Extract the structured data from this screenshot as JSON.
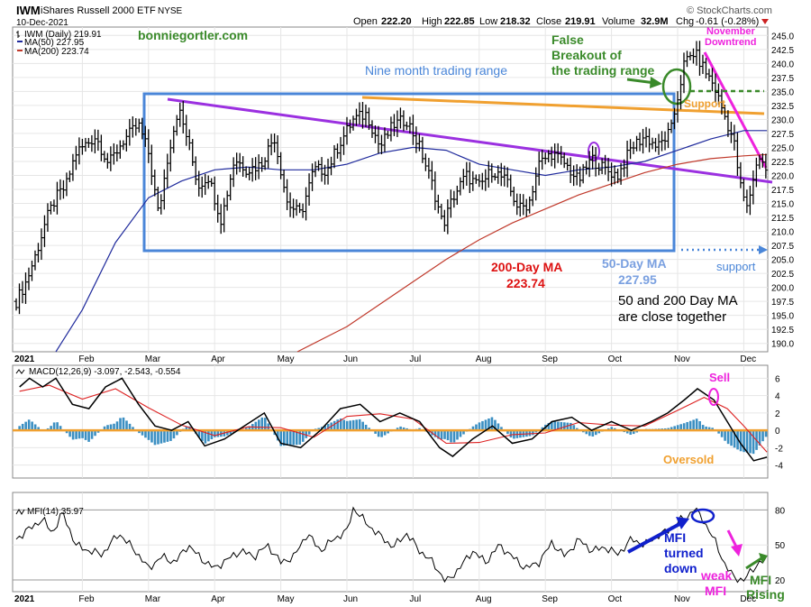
{
  "header": {
    "symbol": "IWM",
    "name": "iShares Russell 2000 ETF",
    "exchange": "NYSE",
    "date": "10-Dec-2021",
    "open_label": "Open",
    "open": "222.20",
    "high_label": "High",
    "high": "222.85",
    "low_label": "Low",
    "low": "218.32",
    "close_label": "Close",
    "close": "219.91",
    "volume_label": "Volume",
    "volume": "32.9M",
    "chg_label": "Chg",
    "chg": "-0.61 (-0.28%)",
    "copyright": "© StockCharts.com"
  },
  "legend": {
    "price": "IWM (Daily) 219.91",
    "ma50": "MA(50) 227.95",
    "ma200": "MA(200) 223.74",
    "macd": "MACD(12,26,9) -3.097, -2.543, -0.554",
    "mfi": "MFI(14) 35.97"
  },
  "annotations": {
    "author": "bonniegortler.com",
    "nine_month": "Nine month trading range",
    "false_breakout": [
      "False",
      "Breakout of",
      "the trading range"
    ],
    "november": [
      "November",
      "Downtrend"
    ],
    "support_top": "Support",
    "support_bottom": "support",
    "ma200_label": [
      "200-Day MA",
      "223.74"
    ],
    "ma50_label": [
      "50-Day MA",
      "227.95"
    ],
    "close_together": [
      "50 and 200 Day MA",
      "are close together"
    ],
    "sell": "Sell",
    "oversold": "Oversold",
    "mfi_turned": [
      "MFI",
      "turned",
      "down"
    ],
    "weak_mfi": [
      "weak",
      "MFI"
    ],
    "mfi_rising": [
      "MFI",
      "Rising"
    ]
  },
  "colors": {
    "price_bar": "#000000",
    "ma50": "#1f2a9c",
    "ma200": "#c0392b",
    "trading_box": "#4a86d8",
    "trend_purple": "#9b30e0",
    "trend_orange": "#f0a030",
    "trend_magenta": "#ee22dd",
    "green": "#3a8a2a",
    "blue_text": "#4a86d8",
    "red_text": "#dd1111",
    "hist": "#3b8fc2",
    "macd_signal": "#dd2222",
    "zero_line": "#f0a030"
  },
  "chart_data": [
    {
      "type": "ohlc",
      "title": "IWM iShares Russell 2000 ETF NYSE",
      "x_months": [
        "2021",
        "Feb",
        "Mar",
        "Apr",
        "May",
        "Jun",
        "Jul",
        "Aug",
        "Sep",
        "Oct",
        "Nov",
        "Dec"
      ],
      "yticks": [
        190,
        192.5,
        195,
        197.5,
        200,
        202.5,
        205,
        207.5,
        210,
        212.5,
        215,
        217.5,
        220,
        222.5,
        225,
        227.5,
        230,
        232.5,
        235,
        237.5,
        240,
        242.5,
        245
      ],
      "ylim": [
        188.5,
        246.5
      ],
      "close_path": [
        {
          "m": 0.0,
          "v": 197.5
        },
        {
          "m": 0.15,
          "v": 201
        },
        {
          "m": 0.3,
          "v": 206
        },
        {
          "m": 0.45,
          "v": 212
        },
        {
          "m": 0.6,
          "v": 216
        },
        {
          "m": 0.75,
          "v": 218
        },
        {
          "m": 0.9,
          "v": 224
        },
        {
          "m": 1.0,
          "v": 225
        },
        {
          "m": 1.2,
          "v": 227
        },
        {
          "m": 1.4,
          "v": 222
        },
        {
          "m": 1.6,
          "v": 226
        },
        {
          "m": 1.85,
          "v": 229
        },
        {
          "m": 2.0,
          "v": 224
        },
        {
          "m": 2.15,
          "v": 213
        },
        {
          "m": 2.3,
          "v": 224
        },
        {
          "m": 2.45,
          "v": 232
        },
        {
          "m": 2.6,
          "v": 226
        },
        {
          "m": 2.75,
          "v": 218
        },
        {
          "m": 2.9,
          "v": 220
        },
        {
          "m": 3.1,
          "v": 212
        },
        {
          "m": 3.3,
          "v": 223
        },
        {
          "m": 3.5,
          "v": 221
        },
        {
          "m": 3.7,
          "v": 222
        },
        {
          "m": 3.9,
          "v": 227
        },
        {
          "m": 4.1,
          "v": 215
        },
        {
          "m": 4.3,
          "v": 213
        },
        {
          "m": 4.5,
          "v": 221
        },
        {
          "m": 4.7,
          "v": 221
        },
        {
          "m": 4.9,
          "v": 226
        },
        {
          "m": 5.1,
          "v": 230
        },
        {
          "m": 5.3,
          "v": 231
        },
        {
          "m": 5.5,
          "v": 225
        },
        {
          "m": 5.7,
          "v": 229
        },
        {
          "m": 5.9,
          "v": 230
        },
        {
          "m": 6.1,
          "v": 225
        },
        {
          "m": 6.3,
          "v": 218
        },
        {
          "m": 6.45,
          "v": 211
        },
        {
          "m": 6.6,
          "v": 216
        },
        {
          "m": 6.8,
          "v": 220
        },
        {
          "m": 7.0,
          "v": 218
        },
        {
          "m": 7.2,
          "v": 221
        },
        {
          "m": 7.4,
          "v": 219
        },
        {
          "m": 7.6,
          "v": 214
        },
        {
          "m": 7.75,
          "v": 215
        },
        {
          "m": 7.9,
          "v": 222
        },
        {
          "m": 8.1,
          "v": 224
        },
        {
          "m": 8.3,
          "v": 222
        },
        {
          "m": 8.5,
          "v": 219
        },
        {
          "m": 8.7,
          "v": 223
        },
        {
          "m": 8.9,
          "v": 221
        },
        {
          "m": 9.1,
          "v": 220
        },
        {
          "m": 9.3,
          "v": 225
        },
        {
          "m": 9.5,
          "v": 227
        },
        {
          "m": 9.7,
          "v": 225
        },
        {
          "m": 9.9,
          "v": 228
        },
        {
          "m": 10.0,
          "v": 234
        },
        {
          "m": 10.1,
          "v": 240
        },
        {
          "m": 10.25,
          "v": 242
        },
        {
          "m": 10.4,
          "v": 239
        },
        {
          "m": 10.55,
          "v": 236
        },
        {
          "m": 10.7,
          "v": 231
        },
        {
          "m": 10.85,
          "v": 226
        },
        {
          "m": 10.95,
          "v": 218
        },
        {
          "m": 11.05,
          "v": 214
        },
        {
          "m": 11.15,
          "v": 220
        },
        {
          "m": 11.25,
          "v": 224
        },
        {
          "m": 11.35,
          "v": 220
        }
      ],
      "ma50_path": [
        {
          "m": 0.6,
          "v": 188.5
        },
        {
          "m": 1.0,
          "v": 196
        },
        {
          "m": 1.5,
          "v": 208
        },
        {
          "m": 2.0,
          "v": 216
        },
        {
          "m": 2.5,
          "v": 219
        },
        {
          "m": 3.0,
          "v": 221
        },
        {
          "m": 3.5,
          "v": 221.5
        },
        {
          "m": 4.0,
          "v": 221
        },
        {
          "m": 4.5,
          "v": 221
        },
        {
          "m": 5.0,
          "v": 222
        },
        {
          "m": 5.5,
          "v": 224
        },
        {
          "m": 6.0,
          "v": 225
        },
        {
          "m": 6.5,
          "v": 224.5
        },
        {
          "m": 7.0,
          "v": 222
        },
        {
          "m": 7.5,
          "v": 221
        },
        {
          "m": 8.0,
          "v": 220
        },
        {
          "m": 8.5,
          "v": 221
        },
        {
          "m": 9.0,
          "v": 221.5
        },
        {
          "m": 9.5,
          "v": 222.5
        },
        {
          "m": 10.0,
          "v": 224.5
        },
        {
          "m": 10.5,
          "v": 226.5
        },
        {
          "m": 11.0,
          "v": 228
        },
        {
          "m": 11.35,
          "v": 228
        }
      ],
      "ma200_path": [
        {
          "m": 4.25,
          "v": 188.5
        },
        {
          "m": 5.0,
          "v": 193
        },
        {
          "m": 5.5,
          "v": 197
        },
        {
          "m": 6.0,
          "v": 201
        },
        {
          "m": 6.5,
          "v": 205
        },
        {
          "m": 7.0,
          "v": 208.5
        },
        {
          "m": 7.5,
          "v": 211.5
        },
        {
          "m": 8.0,
          "v": 214
        },
        {
          "m": 8.5,
          "v": 216.5
        },
        {
          "m": 9.0,
          "v": 218.5
        },
        {
          "m": 9.5,
          "v": 220.5
        },
        {
          "m": 10.0,
          "v": 222
        },
        {
          "m": 10.5,
          "v": 223
        },
        {
          "m": 11.0,
          "v": 223.5
        },
        {
          "m": 11.35,
          "v": 223.74
        }
      ]
    },
    {
      "type": "line",
      "title": "MACD(12,26,9)",
      "yticks": [
        -4,
        -2,
        0,
        2,
        4,
        6
      ],
      "ylim": [
        -5.5,
        7.5
      ],
      "series": [
        {
          "name": "MACD",
          "points": [
            {
              "m": 0.05,
              "v": 5
            },
            {
              "m": 0.2,
              "v": 6
            },
            {
              "m": 0.4,
              "v": 5
            },
            {
              "m": 0.6,
              "v": 6
            },
            {
              "m": 0.85,
              "v": 3
            },
            {
              "m": 1.1,
              "v": 2.5
            },
            {
              "m": 1.35,
              "v": 5
            },
            {
              "m": 1.6,
              "v": 6
            },
            {
              "m": 1.85,
              "v": 3
            },
            {
              "m": 2.1,
              "v": 0.5
            },
            {
              "m": 2.35,
              "v": 0
            },
            {
              "m": 2.6,
              "v": 1
            },
            {
              "m": 2.85,
              "v": -1.8
            },
            {
              "m": 3.15,
              "v": -1
            },
            {
              "m": 3.45,
              "v": 0.5
            },
            {
              "m": 3.75,
              "v": 2
            },
            {
              "m": 4.0,
              "v": -1.5
            },
            {
              "m": 4.3,
              "v": -2
            },
            {
              "m": 4.6,
              "v": 0
            },
            {
              "m": 4.9,
              "v": 2.5
            },
            {
              "m": 5.2,
              "v": 3
            },
            {
              "m": 5.5,
              "v": 1
            },
            {
              "m": 5.8,
              "v": 2
            },
            {
              "m": 6.1,
              "v": 1
            },
            {
              "m": 6.4,
              "v": -2
            },
            {
              "m": 6.6,
              "v": -3
            },
            {
              "m": 6.9,
              "v": -1
            },
            {
              "m": 7.2,
              "v": 0.5
            },
            {
              "m": 7.5,
              "v": -1.5
            },
            {
              "m": 7.8,
              "v": -1
            },
            {
              "m": 8.1,
              "v": 1
            },
            {
              "m": 8.4,
              "v": 1.5
            },
            {
              "m": 8.7,
              "v": 0
            },
            {
              "m": 9.0,
              "v": 1
            },
            {
              "m": 9.3,
              "v": 0
            },
            {
              "m": 9.6,
              "v": 1
            },
            {
              "m": 9.85,
              "v": 2
            },
            {
              "m": 10.1,
              "v": 3.5
            },
            {
              "m": 10.3,
              "v": 4.8
            },
            {
              "m": 10.55,
              "v": 3.5
            },
            {
              "m": 10.75,
              "v": 1
            },
            {
              "m": 10.95,
              "v": -1.5
            },
            {
              "m": 11.15,
              "v": -3.5
            },
            {
              "m": 11.35,
              "v": -3.1
            }
          ]
        },
        {
          "name": "Signal",
          "points": [
            {
              "m": 0.05,
              "v": 4.5
            },
            {
              "m": 0.5,
              "v": 5.2
            },
            {
              "m": 1.0,
              "v": 3.6
            },
            {
              "m": 1.5,
              "v": 4.8
            },
            {
              "m": 2.0,
              "v": 2.6
            },
            {
              "m": 2.5,
              "v": 0.6
            },
            {
              "m": 3.0,
              "v": -0.6
            },
            {
              "m": 3.5,
              "v": 0.4
            },
            {
              "m": 4.0,
              "v": 0.3
            },
            {
              "m": 4.5,
              "v": -0.8
            },
            {
              "m": 5.0,
              "v": 1.6
            },
            {
              "m": 5.5,
              "v": 1.9
            },
            {
              "m": 6.0,
              "v": 1.3
            },
            {
              "m": 6.5,
              "v": -1.5
            },
            {
              "m": 7.0,
              "v": -1.4
            },
            {
              "m": 7.5,
              "v": -0.5
            },
            {
              "m": 8.0,
              "v": -0.3
            },
            {
              "m": 8.5,
              "v": 0.9
            },
            {
              "m": 9.0,
              "v": 0.6
            },
            {
              "m": 9.5,
              "v": 0.5
            },
            {
              "m": 10.0,
              "v": 2.3
            },
            {
              "m": 10.4,
              "v": 3.8
            },
            {
              "m": 10.75,
              "v": 2.5
            },
            {
              "m": 11.0,
              "v": 0.5
            },
            {
              "m": 11.35,
              "v": -2.5
            }
          ]
        }
      ]
    },
    {
      "type": "line",
      "title": "MFI(14)",
      "yticks": [
        20,
        50,
        80
      ],
      "ylim": [
        10,
        95
      ],
      "series": [
        {
          "name": "MFI",
          "points": [
            {
              "m": 0.0,
              "v": 55
            },
            {
              "m": 0.2,
              "v": 64
            },
            {
              "m": 0.4,
              "v": 72
            },
            {
              "m": 0.55,
              "v": 60
            },
            {
              "m": 0.7,
              "v": 78
            },
            {
              "m": 0.9,
              "v": 50
            },
            {
              "m": 1.1,
              "v": 45
            },
            {
              "m": 1.3,
              "v": 42
            },
            {
              "m": 1.55,
              "v": 60
            },
            {
              "m": 1.8,
              "v": 45
            },
            {
              "m": 2.0,
              "v": 30
            },
            {
              "m": 2.2,
              "v": 40
            },
            {
              "m": 2.4,
              "v": 35
            },
            {
              "m": 2.6,
              "v": 50
            },
            {
              "m": 2.8,
              "v": 38
            },
            {
              "m": 3.0,
              "v": 30
            },
            {
              "m": 3.2,
              "v": 38
            },
            {
              "m": 3.4,
              "v": 45
            },
            {
              "m": 3.6,
              "v": 40
            },
            {
              "m": 3.8,
              "v": 50
            },
            {
              "m": 4.0,
              "v": 35
            },
            {
              "m": 4.2,
              "v": 40
            },
            {
              "m": 4.4,
              "v": 60
            },
            {
              "m": 4.6,
              "v": 45
            },
            {
              "m": 4.8,
              "v": 55
            },
            {
              "m": 5.0,
              "v": 62
            },
            {
              "m": 5.1,
              "v": 82
            },
            {
              "m": 5.3,
              "v": 68
            },
            {
              "m": 5.5,
              "v": 58
            },
            {
              "m": 5.7,
              "v": 48
            },
            {
              "m": 5.9,
              "v": 60
            },
            {
              "m": 6.1,
              "v": 45
            },
            {
              "m": 6.3,
              "v": 35
            },
            {
              "m": 6.5,
              "v": 18
            },
            {
              "m": 6.7,
              "v": 30
            },
            {
              "m": 6.9,
              "v": 45
            },
            {
              "m": 7.1,
              "v": 35
            },
            {
              "m": 7.3,
              "v": 50
            },
            {
              "m": 7.5,
              "v": 40
            },
            {
              "m": 7.7,
              "v": 30
            },
            {
              "m": 7.9,
              "v": 35
            },
            {
              "m": 8.1,
              "v": 52
            },
            {
              "m": 8.3,
              "v": 40
            },
            {
              "m": 8.5,
              "v": 55
            },
            {
              "m": 8.7,
              "v": 45
            },
            {
              "m": 8.9,
              "v": 48
            },
            {
              "m": 9.1,
              "v": 42
            },
            {
              "m": 9.3,
              "v": 55
            },
            {
              "m": 9.5,
              "v": 50
            },
            {
              "m": 9.7,
              "v": 58
            },
            {
              "m": 9.85,
              "v": 62
            },
            {
              "m": 10.0,
              "v": 70
            },
            {
              "m": 10.15,
              "v": 74
            },
            {
              "m": 10.25,
              "v": 82
            },
            {
              "m": 10.4,
              "v": 70
            },
            {
              "m": 10.55,
              "v": 55
            },
            {
              "m": 10.7,
              "v": 35
            },
            {
              "m": 10.85,
              "v": 22
            },
            {
              "m": 11.0,
              "v": 20
            },
            {
              "m": 11.15,
              "v": 30
            },
            {
              "m": 11.25,
              "v": 36
            },
            {
              "m": 11.35,
              "v": 36
            }
          ]
        }
      ]
    }
  ]
}
